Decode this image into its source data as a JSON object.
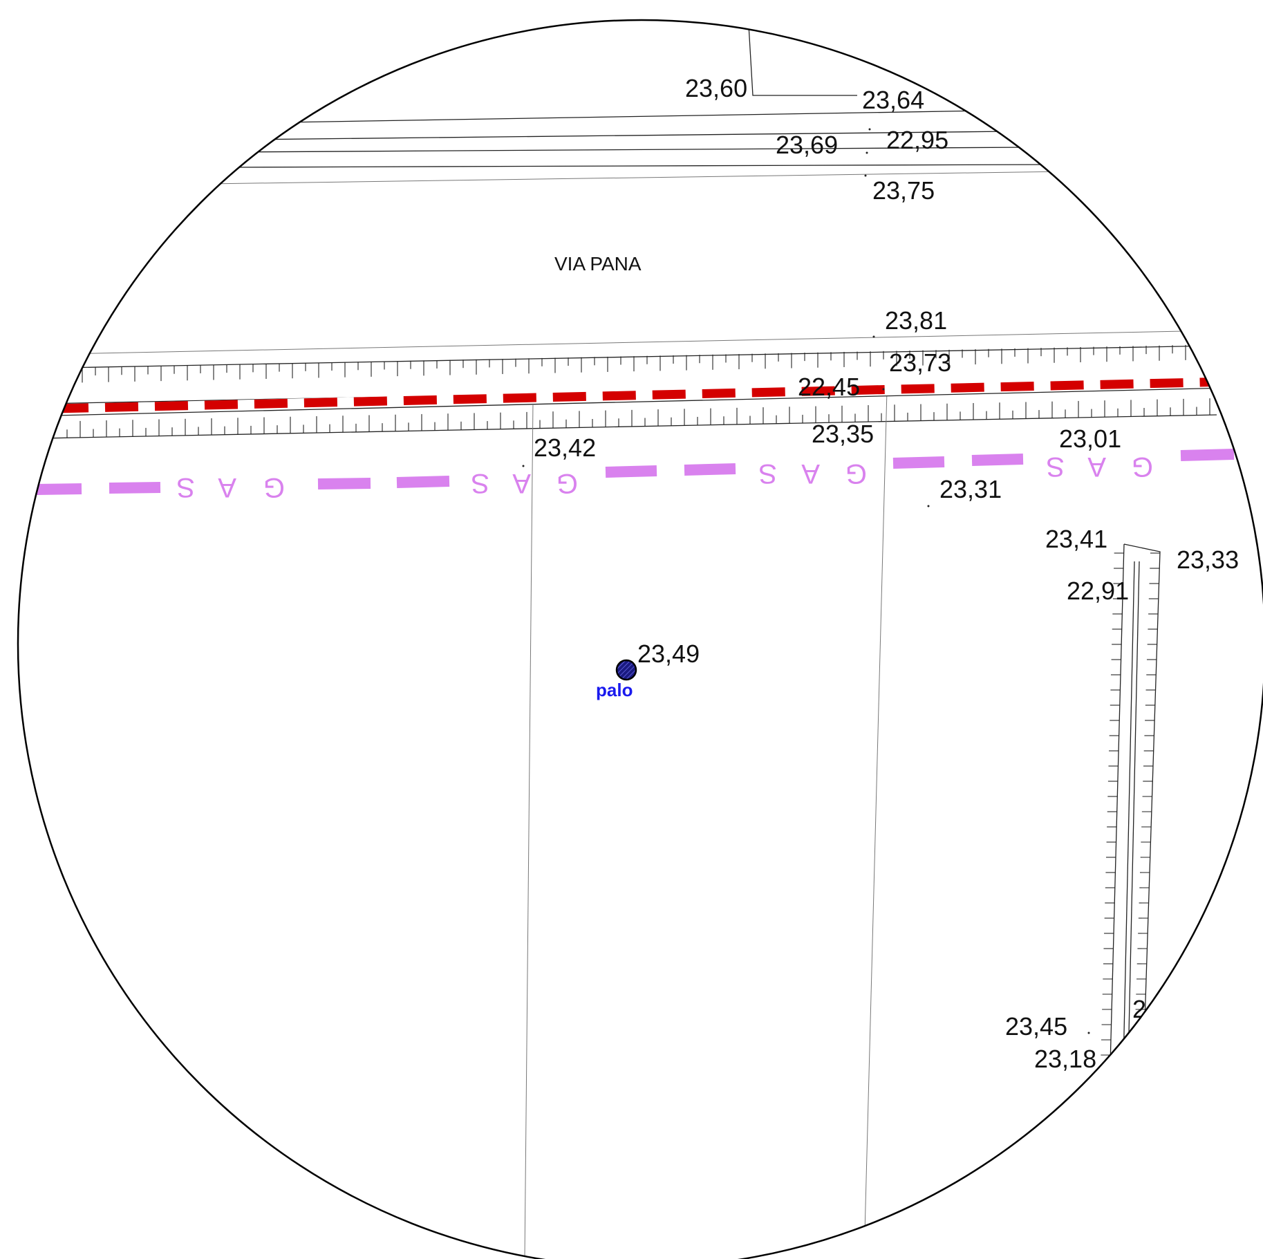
{
  "street_name": "VIA PANA",
  "pole": {
    "label": "palo",
    "elevation": "23,49"
  },
  "elevations": [
    "23,60",
    "23,64",
    "23,69",
    "22,95",
    "23,75",
    "23,81",
    "23,73",
    "22,45",
    "23,35",
    "23,42",
    "23,01",
    "23,31",
    "23,41",
    "23,33",
    "22,91",
    "23,45",
    "23,18"
  ],
  "gas_line": {
    "letters": [
      "S",
      "A",
      "G"
    ],
    "color": "#d982ee"
  },
  "power_line": {
    "color": "#d40000"
  },
  "partial_label": "2"
}
